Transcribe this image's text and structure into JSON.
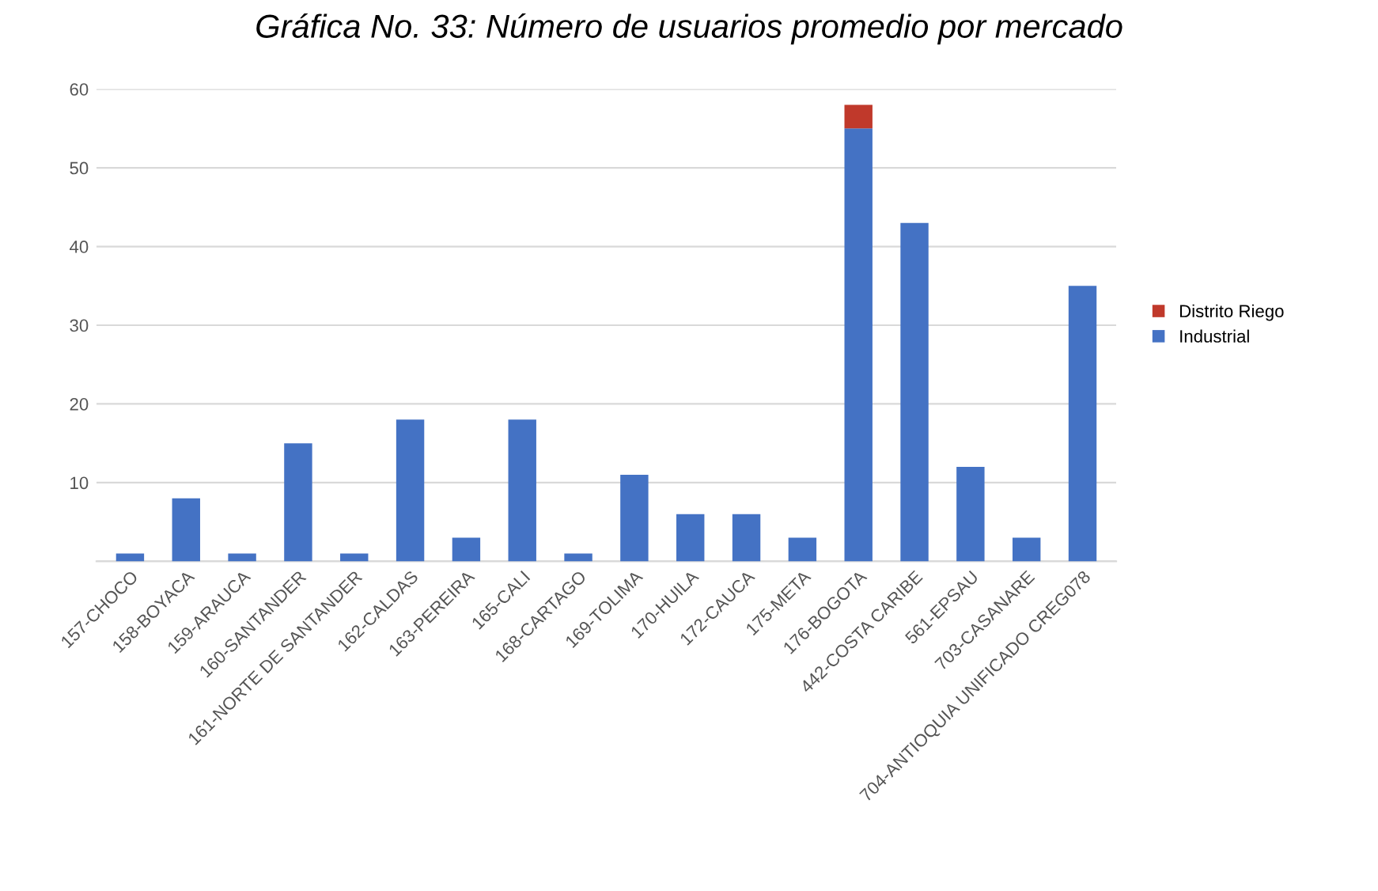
{
  "chart_data": {
    "type": "bar",
    "title": "Gráfica No. 33: Número de usuarios promedio por mercado",
    "categories": [
      "157-CHOCO",
      "158-BOYACA",
      "159-ARAUCA",
      "160-SANTANDER",
      "161-NORTE DE SANTANDER",
      "162-CALDAS",
      "163-PEREIRA",
      "165-CALI",
      "168-CARTAGO",
      "169-TOLIMA",
      "170-HUILA",
      "172-CAUCA",
      "175-META",
      "176-BOGOTA",
      "442-COSTA CARIBE",
      "561-EPSAU",
      "703-CASANARE",
      "704-ANTIOQUIA UNIFICADO CREG078"
    ],
    "stacked": true,
    "series": [
      {
        "name": "Industrial",
        "color": "#4472c4",
        "values": [
          1,
          8,
          1,
          15,
          1,
          18,
          3,
          18,
          1,
          11,
          6,
          6,
          3,
          55,
          43,
          12,
          3,
          35
        ]
      },
      {
        "name": "Distrito Riego",
        "color": "#c0392b",
        "values": [
          null,
          null,
          null,
          null,
          null,
          null,
          null,
          null,
          null,
          null,
          null,
          null,
          null,
          3,
          null,
          null,
          null,
          null
        ]
      }
    ],
    "ylim": [
      0,
      60
    ],
    "yticks": [
      {
        "value": 0,
        "label": null
      },
      10,
      20,
      30,
      40,
      50,
      60
    ],
    "grid": "y",
    "legend": "right"
  }
}
